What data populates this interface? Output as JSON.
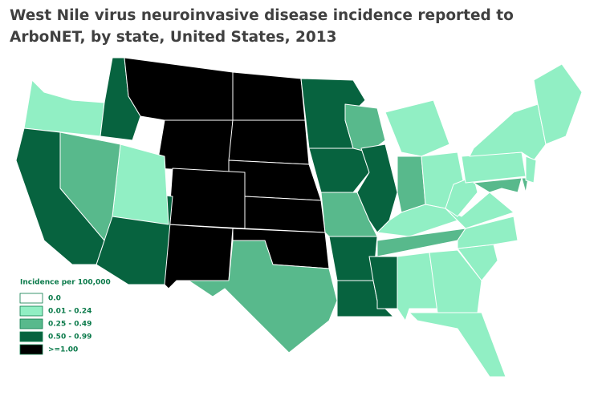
{
  "title": "West Nile virus neuroinvasive disease incidence reported to ArboNET, by state, United States, 2013",
  "legend": {
    "title": "Incidence per 100,000",
    "items": [
      {
        "label": "0.0",
        "color": "#ffffff"
      },
      {
        "label": "0.01 - 0.24",
        "color": "#91efc4"
      },
      {
        "label": "0.25 - 0.49",
        "color": "#58b98c"
      },
      {
        "label": "0.50 - 0.99",
        "color": "#07633f"
      },
      {
        "label": ">=1.00",
        "color": "#000000"
      }
    ]
  }
}
